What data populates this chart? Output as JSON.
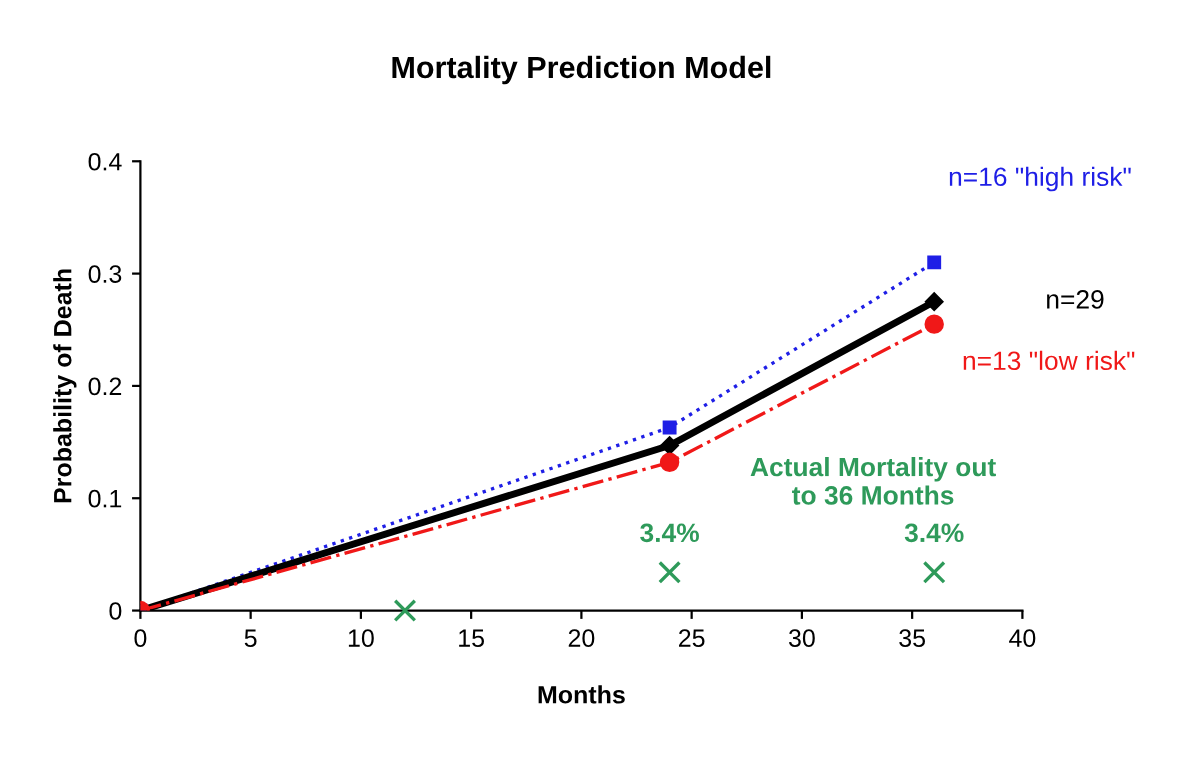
{
  "chart_data": {
    "type": "line",
    "title": "Mortality Prediction Model",
    "xlabel": "Months",
    "ylabel": "Probability of Death",
    "xlim": [
      0,
      40
    ],
    "ylim": [
      0,
      0.4
    ],
    "xticks": [
      0,
      5,
      10,
      15,
      20,
      25,
      30,
      35,
      40
    ],
    "yticks": [
      0,
      0.1,
      0.2,
      0.3,
      0.4
    ],
    "grid": false,
    "legend": false,
    "series": [
      {
        "name": "n=16 \"high risk\"",
        "color": "#1f1fe6",
        "x": [
          0,
          24,
          36
        ],
        "values": [
          0,
          0.163,
          0.31
        ],
        "marker": "square",
        "line_style": "dotted"
      },
      {
        "name": "n=29",
        "color": "#000000",
        "x": [
          0,
          24,
          36
        ],
        "values": [
          0,
          0.147,
          0.275
        ],
        "marker": "diamond",
        "line_style": "solid"
      },
      {
        "name": "n=13 \"low risk\"",
        "color": "#f01818",
        "x": [
          0,
          24,
          36
        ],
        "values": [
          0,
          0.132,
          0.255
        ],
        "marker": "circle",
        "line_style": "dashdot"
      },
      {
        "name": "Actual Mortality out\nto 36 Months",
        "type": "scatter",
        "color": "#2e9a5a",
        "x": [
          12,
          24,
          36
        ],
        "values": [
          0,
          0.034,
          0.034
        ],
        "marker": "cross",
        "value_labels": [
          null,
          "3.4%",
          "3.4%"
        ]
      }
    ]
  }
}
